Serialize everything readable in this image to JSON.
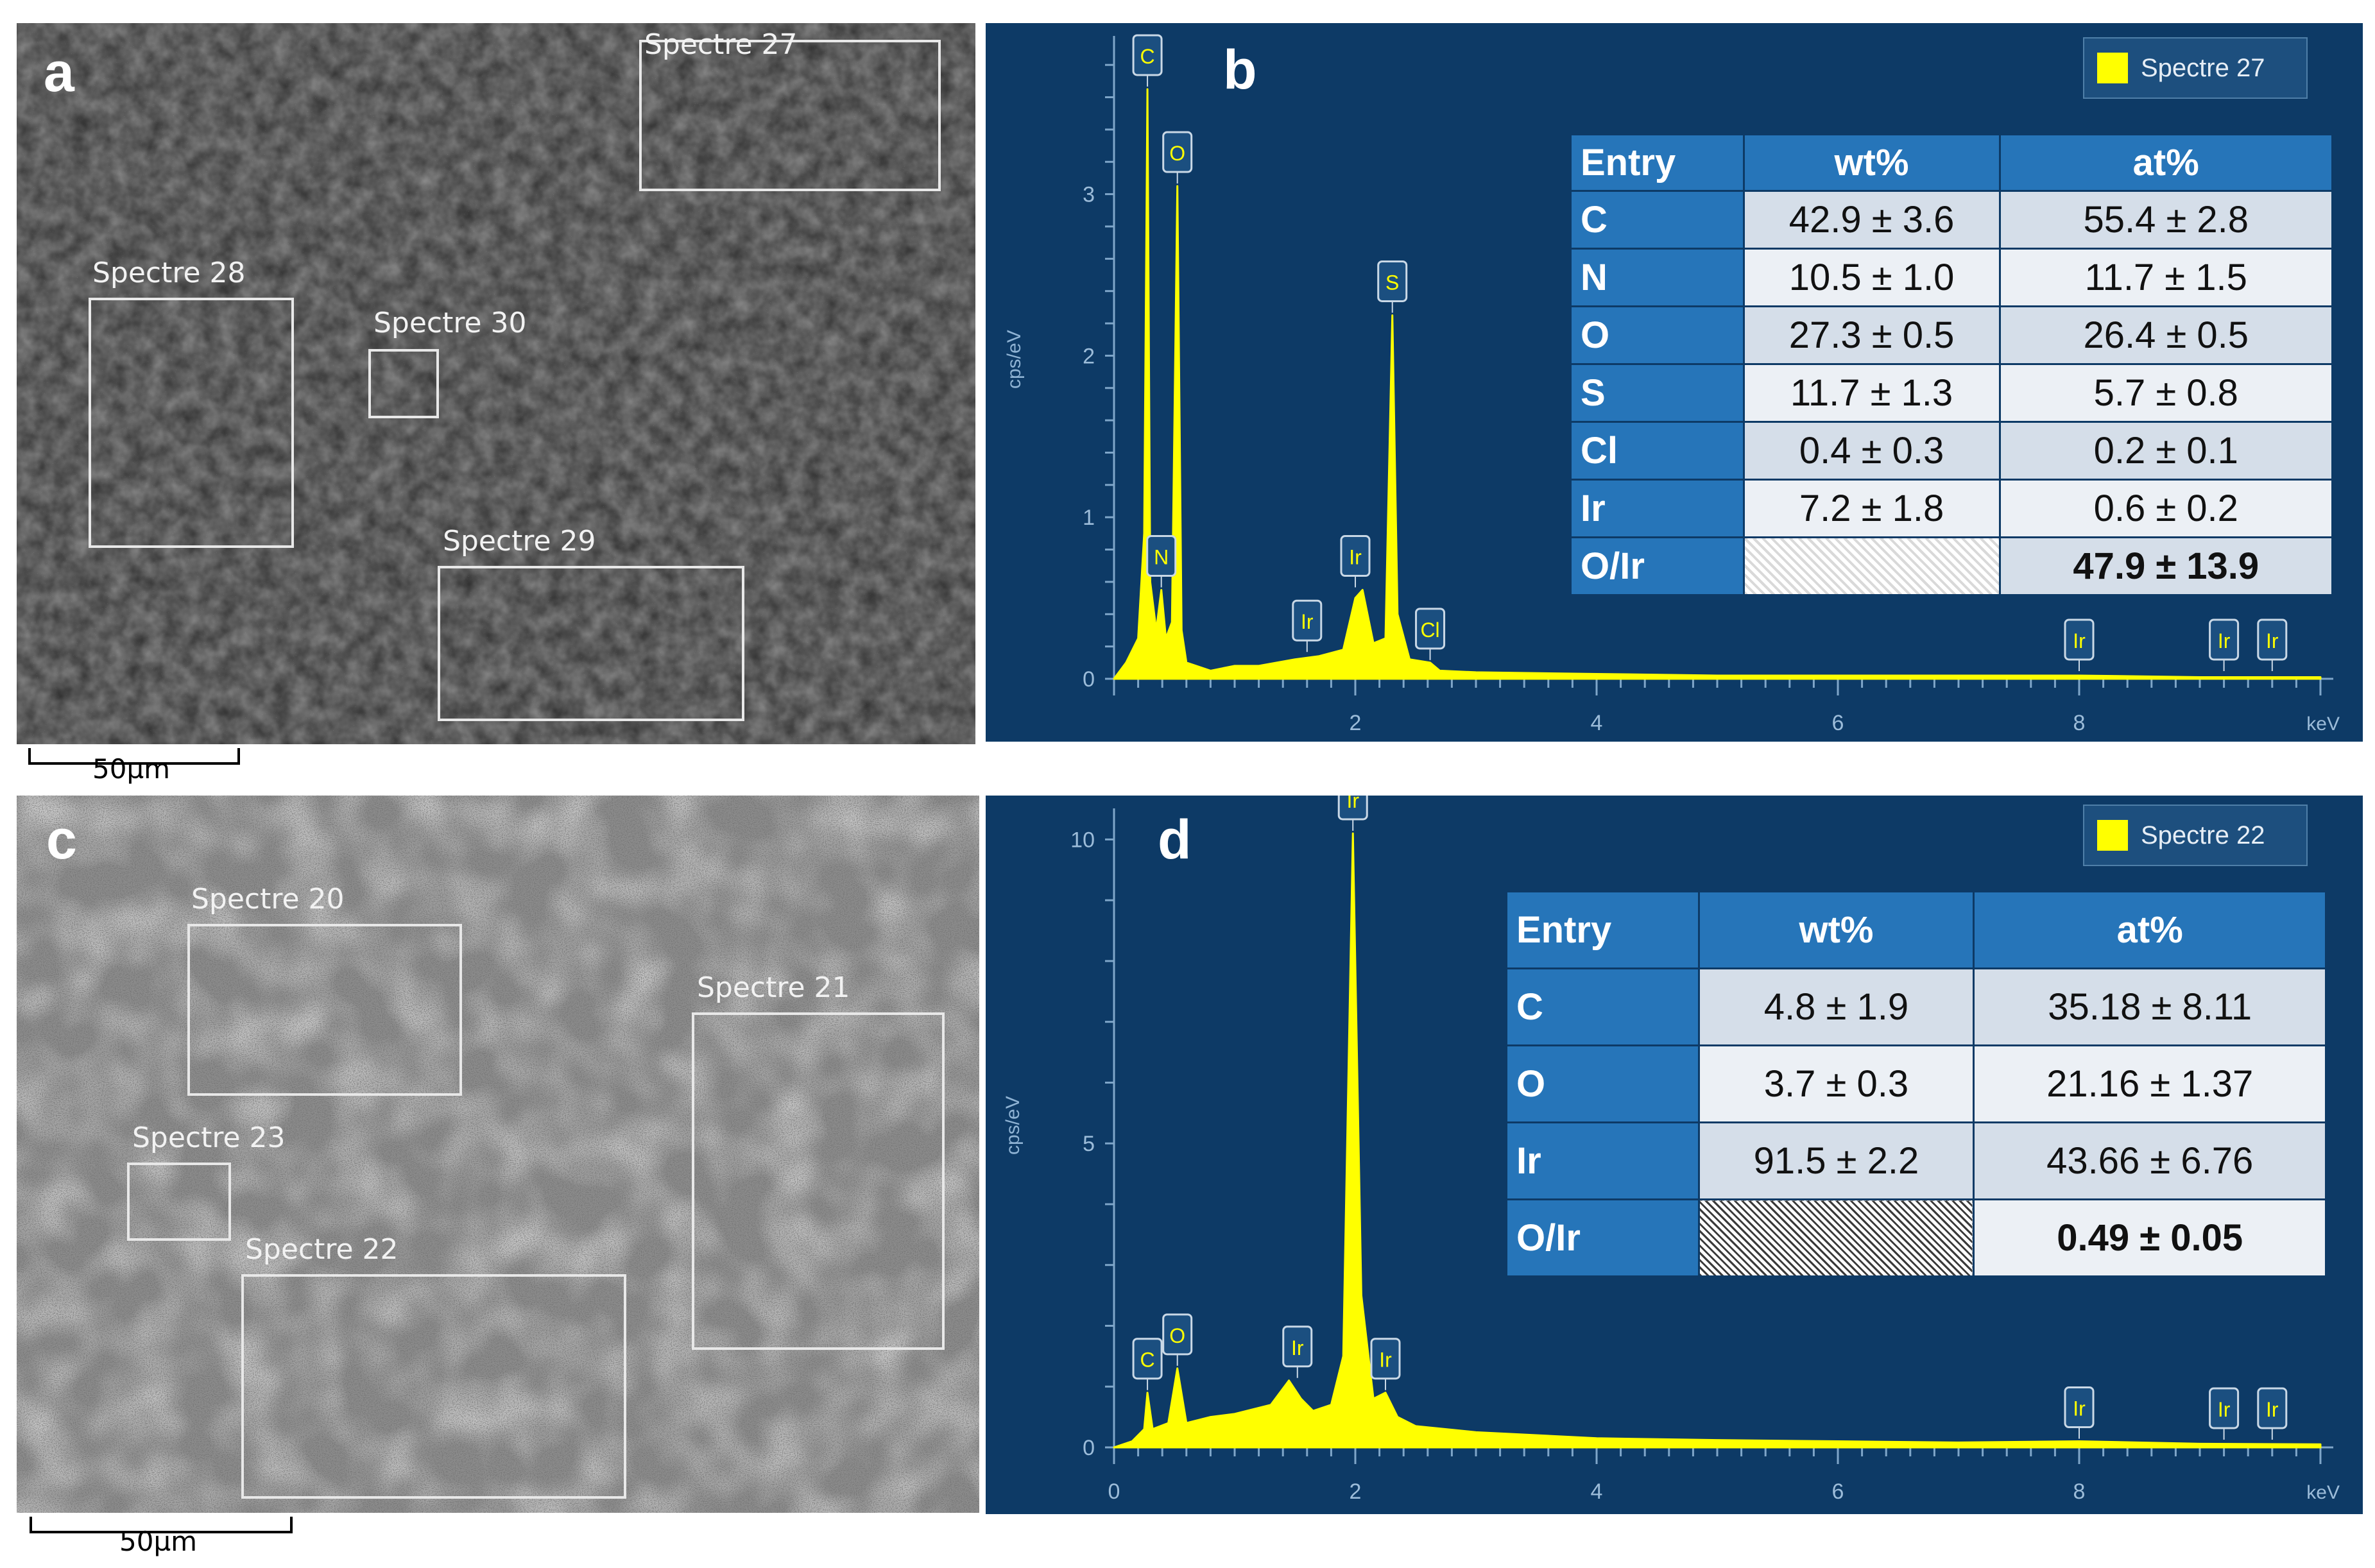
{
  "colors": {
    "eds_background": "#0d3a66",
    "spectrum": "#ffff00",
    "table_header": "#2675b9"
  },
  "panels": {
    "a": {
      "letter": "a",
      "regions": [
        "Spectre 27",
        "Spectre 28",
        "Spectre 30",
        "Spectre 29"
      ],
      "scale_label": "50µm"
    },
    "b": {
      "letter": "b",
      "legend": "Spectre 27",
      "y_label": "cps/eV",
      "x_unit": "keV",
      "y_ticks": [
        "0",
        "1",
        "2",
        "3"
      ],
      "x_ticks": [
        "2",
        "4",
        "6",
        "8"
      ],
      "peak_labels": [
        "C",
        "O",
        "N",
        "S",
        "Ir",
        "Ir",
        "Cl",
        "Ir",
        "Ir",
        "Ir"
      ],
      "table": {
        "headers": [
          "Entry",
          "wt%",
          "at%"
        ],
        "rows": [
          {
            "entry": "C",
            "wt": "42.9 ± 3.6",
            "at": "55.4 ± 2.8"
          },
          {
            "entry": "N",
            "wt": "10.5 ± 1.0",
            "at": "11.7 ± 1.5"
          },
          {
            "entry": "O",
            "wt": "27.3 ± 0.5",
            "at": "26.4 ± 0.5"
          },
          {
            "entry": "S",
            "wt": "11.7 ± 1.3",
            "at": "5.7 ± 0.8"
          },
          {
            "entry": "Cl",
            "wt": "0.4 ± 0.3",
            "at": "0.2 ± 0.1"
          },
          {
            "entry": "Ir",
            "wt": "7.2 ± 1.8",
            "at": "0.6 ± 0.2"
          }
        ],
        "ratio": {
          "entry": "O/Ir",
          "wt": "",
          "at": "47.9 ± 13.9"
        }
      }
    },
    "c": {
      "letter": "c",
      "regions": [
        "Spectre 20",
        "Spectre 21",
        "Spectre 23",
        "Spectre 22"
      ],
      "scale_label": "50µm"
    },
    "d": {
      "letter": "d",
      "legend": "Spectre 22",
      "y_label": "cps/eV",
      "x_unit": "keV",
      "y_ticks": [
        "0",
        "5",
        "10"
      ],
      "x_ticks": [
        "0",
        "2",
        "4",
        "6",
        "8"
      ],
      "peak_labels": [
        "Ir",
        "O",
        "C",
        "Ir",
        "Ir",
        "Ir",
        "Ir",
        "Ir"
      ],
      "table": {
        "headers": [
          "Entry",
          "wt%",
          "at%"
        ],
        "rows": [
          {
            "entry": "C",
            "wt": "4.8 ± 1.9",
            "at": "35.18 ±  8.11"
          },
          {
            "entry": "O",
            "wt": "3.7 ± 0.3",
            "at": "21.16 ± 1.37"
          },
          {
            "entry": "Ir",
            "wt": "91.5 ± 2.2",
            "at": "43.66 ± 6.76"
          }
        ],
        "ratio": {
          "entry": "O/Ir",
          "wt": "",
          "at": "0.49 ± 0.05"
        }
      }
    }
  },
  "chart_data": [
    {
      "type": "line",
      "legend": "Spectre 27",
      "xlabel": "keV",
      "ylabel": "cps/eV",
      "xlim": [
        0,
        10
      ],
      "ylim": [
        0,
        3.9
      ],
      "series": [
        {
          "name": "Spectre 27",
          "x": [
            0.0,
            0.1,
            0.2,
            0.25,
            0.277,
            0.3,
            0.35,
            0.392,
            0.43,
            0.48,
            0.525,
            0.56,
            0.6,
            0.8,
            1.0,
            1.2,
            1.5,
            1.7,
            1.9,
            2.0,
            2.06,
            2.15,
            2.25,
            2.307,
            2.35,
            2.45,
            2.62,
            2.7,
            3.0,
            4.0,
            5.0,
            6.0,
            7.0,
            8.0,
            9.0,
            10.0
          ],
          "y": [
            0.0,
            0.1,
            0.25,
            0.9,
            3.65,
            0.6,
            0.3,
            0.55,
            0.25,
            0.35,
            3.05,
            0.3,
            0.1,
            0.05,
            0.08,
            0.08,
            0.12,
            0.14,
            0.18,
            0.5,
            0.55,
            0.22,
            0.25,
            2.25,
            0.4,
            0.12,
            0.1,
            0.05,
            0.04,
            0.03,
            0.02,
            0.02,
            0.02,
            0.02,
            0.01,
            0.01
          ]
        }
      ],
      "peaks": [
        {
          "label": "C",
          "x": 0.277,
          "y": 3.65
        },
        {
          "label": "O",
          "x": 0.525,
          "y": 3.05
        },
        {
          "label": "N",
          "x": 0.392,
          "y": 0.55
        },
        {
          "label": "S",
          "x": 2.307,
          "y": 2.25
        },
        {
          "label": "Ir",
          "x": 2.0,
          "y": 0.55
        },
        {
          "label": "Ir",
          "x": 1.6,
          "y": 0.15
        },
        {
          "label": "Cl",
          "x": 2.62,
          "y": 0.1
        },
        {
          "label": "Ir",
          "x": 8.0,
          "y": 0.02
        },
        {
          "label": "Ir",
          "x": 9.2,
          "y": 0.02
        },
        {
          "label": "Ir",
          "x": 9.6,
          "y": 0.02
        }
      ]
    },
    {
      "type": "line",
      "legend": "Spectre 22",
      "xlabel": "keV",
      "ylabel": "cps/eV",
      "xlim": [
        0,
        10
      ],
      "ylim": [
        0,
        10.3
      ],
      "series": [
        {
          "name": "Spectre 22",
          "x": [
            0.0,
            0.15,
            0.25,
            0.277,
            0.32,
            0.45,
            0.525,
            0.6,
            0.8,
            1.0,
            1.3,
            1.45,
            1.55,
            1.65,
            1.8,
            1.9,
            1.98,
            2.05,
            2.15,
            2.25,
            2.35,
            2.5,
            3.0,
            4.0,
            5.0,
            6.0,
            7.0,
            8.0,
            9.0,
            10.0
          ],
          "y": [
            0.0,
            0.1,
            0.3,
            0.9,
            0.3,
            0.4,
            1.3,
            0.4,
            0.5,
            0.55,
            0.7,
            1.1,
            0.8,
            0.6,
            0.7,
            1.5,
            10.1,
            2.5,
            0.8,
            0.9,
            0.5,
            0.35,
            0.25,
            0.15,
            0.12,
            0.1,
            0.08,
            0.1,
            0.06,
            0.05
          ]
        }
      ],
      "peaks": [
        {
          "label": "Ir",
          "x": 1.98,
          "y": 10.1
        },
        {
          "label": "O",
          "x": 0.525,
          "y": 1.3
        },
        {
          "label": "C",
          "x": 0.277,
          "y": 0.9
        },
        {
          "label": "Ir",
          "x": 1.52,
          "y": 1.1
        },
        {
          "label": "Ir",
          "x": 2.25,
          "y": 0.9
        },
        {
          "label": "Ir",
          "x": 8.0,
          "y": 0.1
        },
        {
          "label": "Ir",
          "x": 9.2,
          "y": 0.08
        },
        {
          "label": "Ir",
          "x": 9.6,
          "y": 0.06
        }
      ]
    }
  ]
}
